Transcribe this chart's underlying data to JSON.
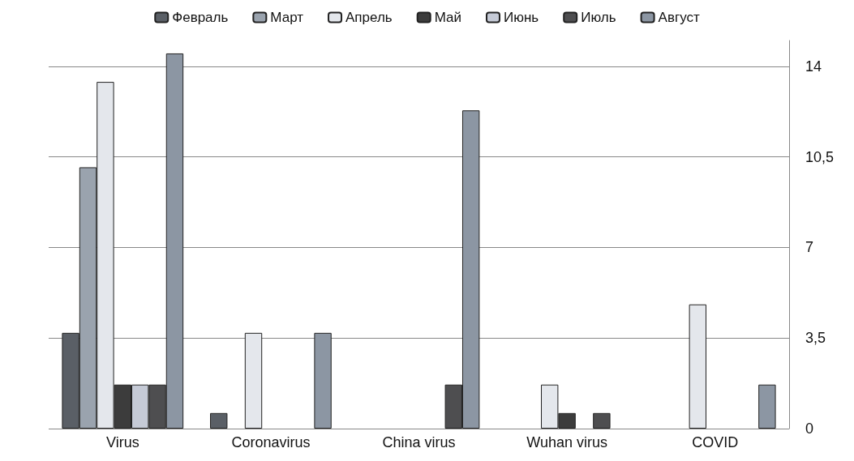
{
  "chart_data": {
    "type": "bar",
    "categories": [
      "Virus",
      "Coronavirus",
      "China virus",
      "Wuhan virus",
      "COVID"
    ],
    "series": [
      {
        "name": "Февраль",
        "color": "#5a5f66",
        "values": [
          3.7,
          0.6,
          null,
          null,
          null
        ]
      },
      {
        "name": "Март",
        "color": "#9aa3ae",
        "values": [
          10.1,
          null,
          null,
          null,
          null
        ]
      },
      {
        "name": "Апрель",
        "color": "#e4e7ec",
        "values": [
          13.4,
          3.7,
          null,
          1.7,
          4.8
        ]
      },
      {
        "name": "Май",
        "color": "#3c3c3c",
        "values": [
          1.7,
          null,
          null,
          0.6,
          null
        ]
      },
      {
        "name": "Июнь",
        "color": "#c5cad6",
        "values": [
          1.7,
          null,
          null,
          null,
          null
        ]
      },
      {
        "name": "Июль",
        "color": "#4e4e50",
        "values": [
          1.7,
          null,
          1.7,
          0.6,
          null
        ]
      },
      {
        "name": "Август",
        "color": "#8c96a3",
        "values": [
          14.5,
          3.7,
          12.3,
          null,
          1.7
        ]
      }
    ],
    "ylim": [
      0,
      15
    ],
    "yticks": [
      {
        "value": 0,
        "label": "0"
      },
      {
        "value": 3.5,
        "label": "3,5"
      },
      {
        "value": 7,
        "label": "7"
      },
      {
        "value": 10.5,
        "label": "10,5"
      },
      {
        "value": 14,
        "label": "14"
      }
    ],
    "grid": "y",
    "legend": "top"
  }
}
